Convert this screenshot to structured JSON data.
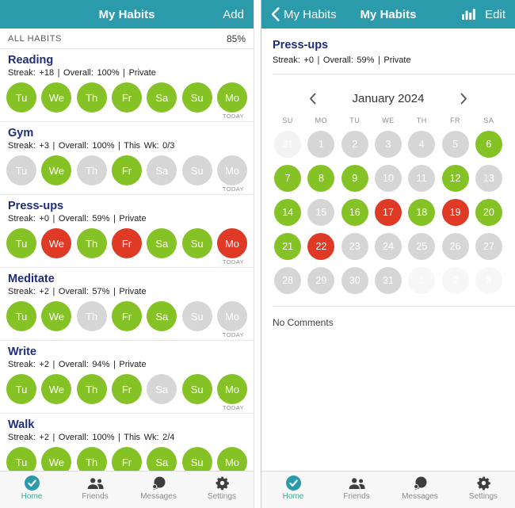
{
  "colors": {
    "header_teal": "#2b9aab",
    "habit_green": "#85c226",
    "habit_red": "#de3a26",
    "habit_gray": "#d6d6d6",
    "faded_circle": "#f3f3f3",
    "title_navy": "#1f2d7b",
    "active_tab_teal": "#3fa796"
  },
  "left_screen": {
    "header": {
      "title": "My Habits",
      "add_label": "Add"
    },
    "summary": {
      "label": "ALL HABITS",
      "value": "85%"
    },
    "habits": [
      {
        "name": "Reading",
        "stats": "Streak: +18 | Overall: 100% | Private",
        "today": "TODAY",
        "days": [
          {
            "label": "Tu",
            "state": "green"
          },
          {
            "label": "We",
            "state": "green"
          },
          {
            "label": "Th",
            "state": "green"
          },
          {
            "label": "Fr",
            "state": "green"
          },
          {
            "label": "Sa",
            "state": "green"
          },
          {
            "label": "Su",
            "state": "green"
          },
          {
            "label": "Mo",
            "state": "green"
          }
        ]
      },
      {
        "name": "Gym",
        "stats": "Streak: +3 | Overall: 100% | This Wk: 0/3",
        "today": "TODAY",
        "days": [
          {
            "label": "Tu",
            "state": "gray"
          },
          {
            "label": "We",
            "state": "green"
          },
          {
            "label": "Th",
            "state": "gray"
          },
          {
            "label": "Fr",
            "state": "green"
          },
          {
            "label": "Sa",
            "state": "gray"
          },
          {
            "label": "Su",
            "state": "gray"
          },
          {
            "label": "Mo",
            "state": "gray"
          }
        ]
      },
      {
        "name": "Press-ups",
        "stats": "Streak: +0 | Overall: 59% | Private",
        "today": "TODAY",
        "days": [
          {
            "label": "Tu",
            "state": "green"
          },
          {
            "label": "We",
            "state": "red"
          },
          {
            "label": "Th",
            "state": "green"
          },
          {
            "label": "Fr",
            "state": "red"
          },
          {
            "label": "Sa",
            "state": "green"
          },
          {
            "label": "Su",
            "state": "green"
          },
          {
            "label": "Mo",
            "state": "red"
          }
        ]
      },
      {
        "name": "Meditate",
        "stats": "Streak: +2 | Overall: 57% | Private",
        "today": "TODAY",
        "days": [
          {
            "label": "Tu",
            "state": "green"
          },
          {
            "label": "We",
            "state": "green"
          },
          {
            "label": "Th",
            "state": "gray"
          },
          {
            "label": "Fr",
            "state": "green"
          },
          {
            "label": "Sa",
            "state": "green"
          },
          {
            "label": "Su",
            "state": "gray"
          },
          {
            "label": "Mo",
            "state": "gray"
          }
        ]
      },
      {
        "name": "Write",
        "stats": "Streak: +2 | Overall: 94% | Private",
        "today": "TODAY",
        "days": [
          {
            "label": "Tu",
            "state": "green"
          },
          {
            "label": "We",
            "state": "green"
          },
          {
            "label": "Th",
            "state": "green"
          },
          {
            "label": "Fr",
            "state": "green"
          },
          {
            "label": "Sa",
            "state": "gray"
          },
          {
            "label": "Su",
            "state": "green"
          },
          {
            "label": "Mo",
            "state": "green"
          }
        ]
      },
      {
        "name": "Walk",
        "stats": "Streak: +2 | Overall: 100% | This Wk: 2/4",
        "today": "",
        "days": [
          {
            "label": "Tu",
            "state": "green"
          },
          {
            "label": "We",
            "state": "green"
          },
          {
            "label": "Th",
            "state": "green"
          },
          {
            "label": "Fr",
            "state": "green"
          },
          {
            "label": "Sa",
            "state": "green"
          },
          {
            "label": "Su",
            "state": "green"
          },
          {
            "label": "Mo",
            "state": "green"
          }
        ]
      }
    ]
  },
  "right_screen": {
    "header": {
      "back_label": "My Habits",
      "title": "My Habits",
      "edit_label": "Edit"
    },
    "habit": {
      "name": "Press-ups",
      "stats": "Streak: +0 | Overall: 59% | Private"
    },
    "calendar": {
      "month_label": "January 2024",
      "weekday_headers": [
        "SU",
        "MO",
        "TU",
        "WE",
        "TH",
        "FR",
        "SA"
      ],
      "weeks": [
        [
          {
            "day": "31",
            "state": "faded"
          },
          {
            "day": "1",
            "state": "gray"
          },
          {
            "day": "2",
            "state": "gray"
          },
          {
            "day": "3",
            "state": "gray"
          },
          {
            "day": "4",
            "state": "gray"
          },
          {
            "day": "5",
            "state": "gray"
          },
          {
            "day": "6",
            "state": "green"
          }
        ],
        [
          {
            "day": "7",
            "state": "green"
          },
          {
            "day": "8",
            "state": "green"
          },
          {
            "day": "9",
            "state": "green"
          },
          {
            "day": "10",
            "state": "gray"
          },
          {
            "day": "11",
            "state": "gray"
          },
          {
            "day": "12",
            "state": "green"
          },
          {
            "day": "13",
            "state": "gray"
          }
        ],
        [
          {
            "day": "14",
            "state": "green"
          },
          {
            "day": "15",
            "state": "gray"
          },
          {
            "day": "16",
            "state": "green"
          },
          {
            "day": "17",
            "state": "red"
          },
          {
            "day": "18",
            "state": "green"
          },
          {
            "day": "19",
            "state": "red"
          },
          {
            "day": "20",
            "state": "green"
          }
        ],
        [
          {
            "day": "21",
            "state": "green"
          },
          {
            "day": "22",
            "state": "red"
          },
          {
            "day": "23",
            "state": "gray"
          },
          {
            "day": "24",
            "state": "gray"
          },
          {
            "day": "25",
            "state": "gray"
          },
          {
            "day": "26",
            "state": "gray"
          },
          {
            "day": "27",
            "state": "gray"
          }
        ],
        [
          {
            "day": "28",
            "state": "gray"
          },
          {
            "day": "29",
            "state": "gray"
          },
          {
            "day": "30",
            "state": "gray"
          },
          {
            "day": "31",
            "state": "gray"
          },
          {
            "day": "1",
            "state": "ghost"
          },
          {
            "day": "2",
            "state": "ghost"
          },
          {
            "day": "3",
            "state": "ghost"
          }
        ]
      ]
    },
    "comments_label": "No Comments"
  },
  "tab_bar": {
    "items": [
      {
        "label": "Home",
        "active": true
      },
      {
        "label": "Friends",
        "active": false
      },
      {
        "label": "Messages",
        "active": false
      },
      {
        "label": "Settings",
        "active": false
      }
    ]
  }
}
